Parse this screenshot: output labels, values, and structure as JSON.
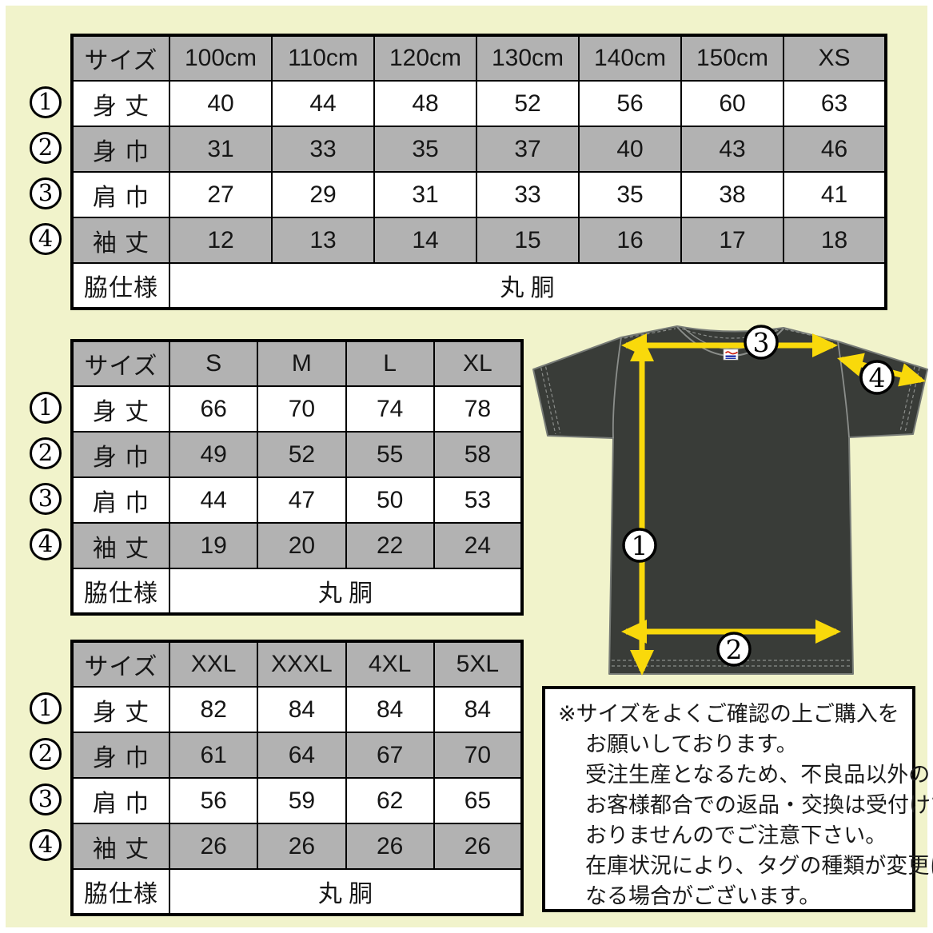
{
  "colors": {
    "background": "#f1f3cb",
    "table_gray": "#b2b2b2",
    "arrow_yellow": "#f9d90b",
    "shirt": "#393c38"
  },
  "tables": [
    {
      "name": "kids",
      "header": [
        "サイズ",
        "100cm",
        "110cm",
        "120cm",
        "130cm",
        "140cm",
        "150cm",
        "XS"
      ],
      "rows": [
        {
          "marker": "1",
          "label": "身 丈",
          "values": [
            "40",
            "44",
            "48",
            "52",
            "56",
            "60",
            "63"
          ]
        },
        {
          "marker": "2",
          "label": "身 巾",
          "values": [
            "31",
            "33",
            "35",
            "37",
            "40",
            "43",
            "46"
          ]
        },
        {
          "marker": "3",
          "label": "肩 巾",
          "values": [
            "27",
            "29",
            "31",
            "33",
            "35",
            "38",
            "41"
          ]
        },
        {
          "marker": "4",
          "label": "袖 丈",
          "values": [
            "12",
            "13",
            "14",
            "15",
            "16",
            "17",
            "18"
          ]
        }
      ],
      "footer": {
        "label": "脇仕様",
        "value": "丸 胴"
      }
    },
    {
      "name": "adult",
      "header": [
        "サイズ",
        "S",
        "M",
        "L",
        "XL"
      ],
      "rows": [
        {
          "marker": "1",
          "label": "身 丈",
          "values": [
            "66",
            "70",
            "74",
            "78"
          ]
        },
        {
          "marker": "2",
          "label": "身 巾",
          "values": [
            "49",
            "52",
            "55",
            "58"
          ]
        },
        {
          "marker": "3",
          "label": "肩 巾",
          "values": [
            "44",
            "47",
            "50",
            "53"
          ]
        },
        {
          "marker": "4",
          "label": "袖 丈",
          "values": [
            "19",
            "20",
            "22",
            "24"
          ]
        }
      ],
      "footer": {
        "label": "脇仕様",
        "value": "丸 胴"
      }
    },
    {
      "name": "plus",
      "header": [
        "サイズ",
        "XXL",
        "XXXL",
        "4XL",
        "5XL"
      ],
      "rows": [
        {
          "marker": "1",
          "label": "身 丈",
          "values": [
            "82",
            "84",
            "84",
            "84"
          ]
        },
        {
          "marker": "2",
          "label": "身 巾",
          "values": [
            "61",
            "64",
            "67",
            "70"
          ]
        },
        {
          "marker": "3",
          "label": "肩 巾",
          "values": [
            "56",
            "59",
            "62",
            "65"
          ]
        },
        {
          "marker": "4",
          "label": "袖 丈",
          "values": [
            "26",
            "26",
            "26",
            "26"
          ]
        }
      ],
      "footer": {
        "label": "脇仕様",
        "value": "丸 胴"
      }
    }
  ],
  "diagram": {
    "markers": [
      "1",
      "2",
      "3",
      "4"
    ]
  },
  "note": {
    "lines": [
      "※サイズをよくご確認の上ご購入を",
      "お願いしております。",
      "受注生産となるため、不良品以外の",
      "お客様都合での返品・交換は受付けて",
      "おりませんのでご注意下さい。",
      "在庫状況により、タグの種類が変更に",
      "なる場合がございます。"
    ]
  }
}
